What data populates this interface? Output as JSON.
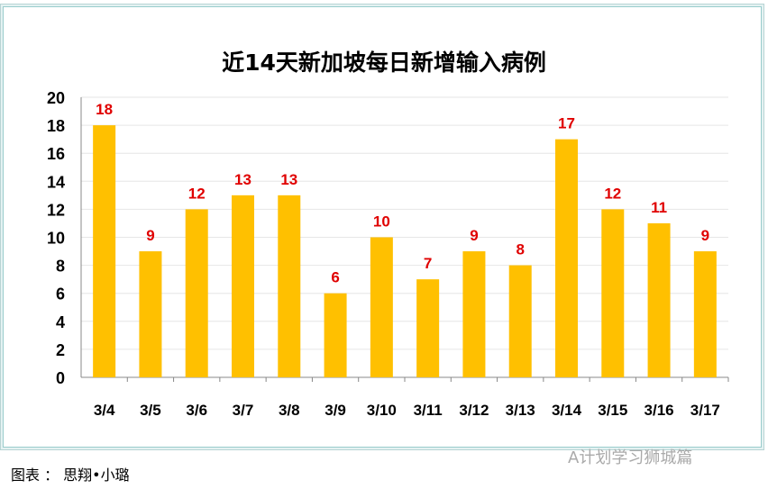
{
  "chart_data": {
    "type": "bar",
    "title": "近14天新加坡每日新增输入病例",
    "categories": [
      "3/4",
      "3/5",
      "3/6",
      "3/7",
      "3/8",
      "3/9",
      "3/10",
      "3/11",
      "3/12",
      "3/13",
      "3/14",
      "3/15",
      "3/16",
      "3/17"
    ],
    "values": [
      18,
      9,
      12,
      13,
      13,
      6,
      10,
      7,
      9,
      8,
      17,
      12,
      11,
      9
    ],
    "ylim": [
      0,
      20
    ],
    "yticks": [
      0,
      2,
      4,
      6,
      8,
      10,
      12,
      14,
      16,
      18,
      20
    ],
    "grid": true,
    "bar_color": "#FFC000",
    "label_color": "#E00000"
  },
  "caption": "图表 ： 思翔•小璐",
  "watermark": "A计划学习狮城篇"
}
